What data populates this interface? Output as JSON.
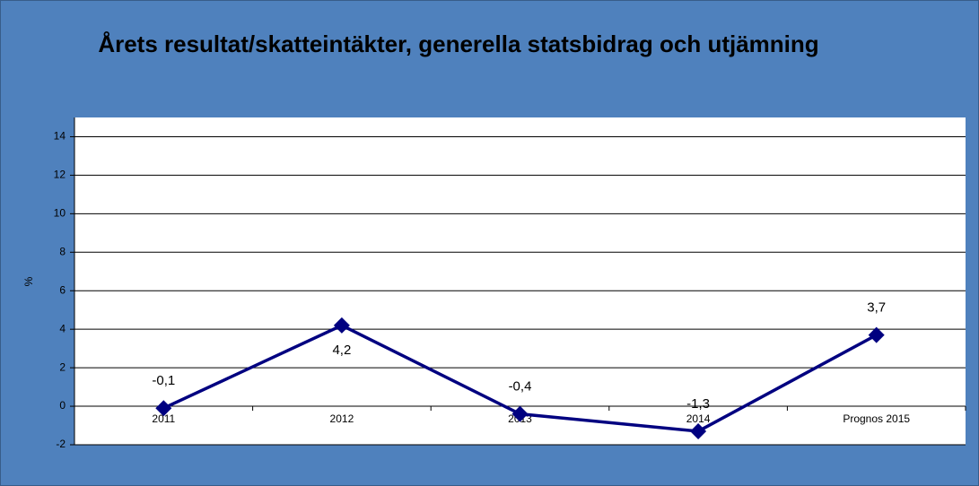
{
  "chart_data": {
    "type": "line",
    "title": "Årets resultat/skatteintäkter, generella statsbidrag och utjämning",
    "y_label": "%",
    "categories": [
      "2011",
      "2012",
      "2013",
      "2014",
      "Prognos 2015"
    ],
    "values": [
      -0.1,
      4.2,
      -0.4,
      -1.3,
      3.7
    ],
    "value_labels": [
      "-0,1",
      "4,2",
      "-0,4",
      "-1,3",
      "3,7"
    ],
    "color": "#000080",
    "ylim": [
      -2,
      15
    ],
    "yticks": [
      -2,
      0,
      2,
      4,
      6,
      8,
      10,
      12,
      14
    ],
    "grid": true
  }
}
